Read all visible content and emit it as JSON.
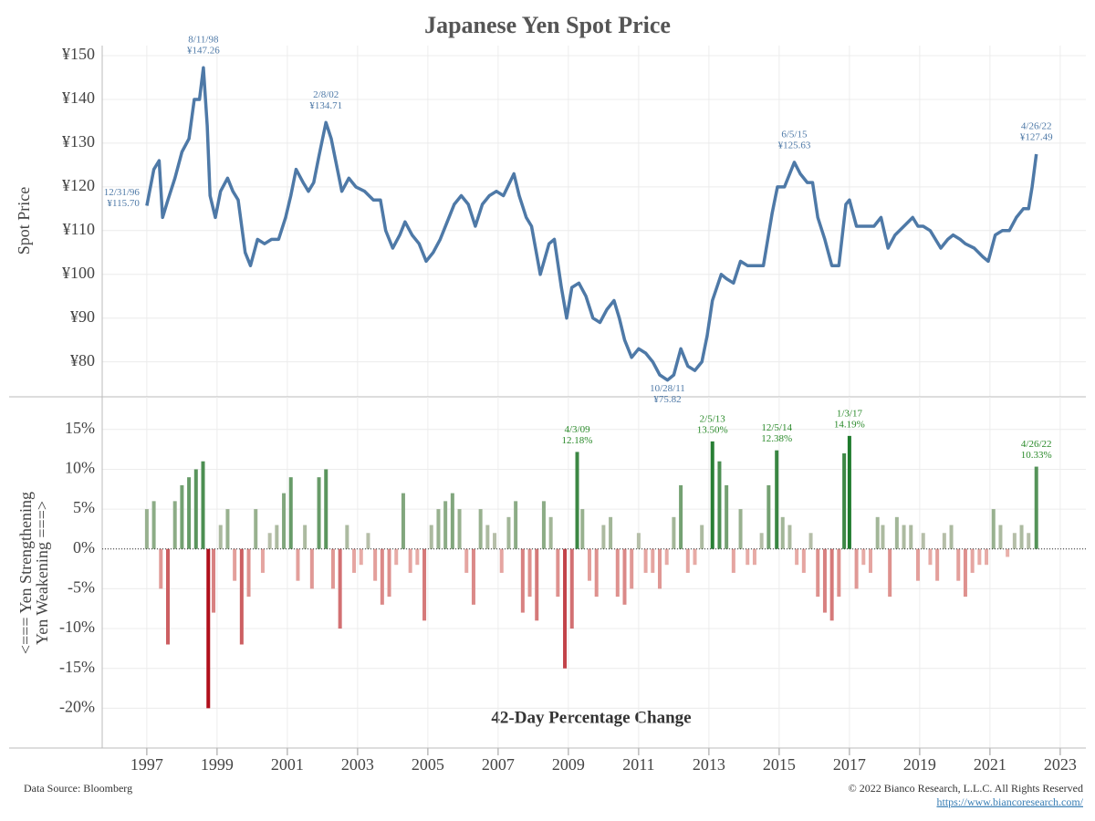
{
  "chart_data": [
    {
      "type": "line",
      "title": "Japanese Yen Spot Price",
      "y_label": "Spot Price",
      "color": "#4e79a7",
      "grid": true,
      "xlim": [
        1995.73,
        2023.73
      ],
      "xticks": [
        1997,
        1999,
        2001,
        2003,
        2005,
        2007,
        2009,
        2011,
        2013,
        2015,
        2017,
        2019,
        2021,
        2023
      ],
      "ylim": [
        72,
        152.3
      ],
      "yticks": [
        {
          "value": 150,
          "label": "¥150"
        },
        {
          "value": 140,
          "label": "¥140"
        },
        {
          "value": 130,
          "label": "¥130"
        },
        {
          "value": 120,
          "label": "¥120"
        },
        {
          "value": 110,
          "label": "¥110"
        },
        {
          "value": 100,
          "label": "¥100"
        },
        {
          "value": 90,
          "label": "¥90"
        },
        {
          "value": 80,
          "label": "¥80"
        }
      ],
      "x": [
        1997.0,
        1997.2,
        1997.35,
        1997.45,
        1997.6,
        1997.8,
        1998.0,
        1998.2,
        1998.35,
        1998.5,
        1998.61,
        1998.72,
        1998.8,
        1998.95,
        1999.1,
        1999.3,
        1999.45,
        1999.6,
        1999.8,
        1999.95,
        2000.15,
        2000.35,
        2000.55,
        2000.75,
        2000.95,
        2001.1,
        2001.25,
        2001.45,
        2001.6,
        2001.75,
        2001.9,
        2002.1,
        2002.25,
        2002.4,
        2002.55,
        2002.75,
        2002.95,
        2003.2,
        2003.45,
        2003.65,
        2003.8,
        2004.0,
        2004.2,
        2004.35,
        2004.55,
        2004.75,
        2004.95,
        2005.15,
        2005.35,
        2005.55,
        2005.75,
        2005.95,
        2006.15,
        2006.35,
        2006.55,
        2006.75,
        2006.95,
        2007.15,
        2007.45,
        2007.6,
        2007.8,
        2007.95,
        2008.2,
        2008.45,
        2008.6,
        2008.8,
        2008.95,
        2009.1,
        2009.3,
        2009.5,
        2009.7,
        2009.9,
        2010.1,
        2010.3,
        2010.45,
        2010.6,
        2010.8,
        2011.0,
        2011.2,
        2011.4,
        2011.6,
        2011.82,
        2012.0,
        2012.2,
        2012.4,
        2012.6,
        2012.8,
        2012.95,
        2013.1,
        2013.35,
        2013.5,
        2013.7,
        2013.9,
        2014.1,
        2014.3,
        2014.55,
        2014.8,
        2014.95,
        2015.15,
        2015.43,
        2015.6,
        2015.8,
        2015.95,
        2016.1,
        2016.3,
        2016.5,
        2016.7,
        2016.9,
        2017.0,
        2017.2,
        2017.45,
        2017.7,
        2017.9,
        2018.1,
        2018.3,
        2018.55,
        2018.8,
        2018.95,
        2019.1,
        2019.3,
        2019.6,
        2019.8,
        2019.95,
        2020.15,
        2020.3,
        2020.55,
        2020.8,
        2020.95,
        2021.15,
        2021.35,
        2021.55,
        2021.75,
        2021.95,
        2022.1,
        2022.2,
        2022.32
      ],
      "values": [
        115.7,
        124,
        126,
        113,
        117,
        122,
        128,
        131,
        140,
        140,
        147.26,
        134,
        118,
        113,
        119,
        122,
        119,
        117,
        105,
        102,
        108,
        107,
        108,
        108,
        113,
        118,
        124,
        121,
        119,
        121,
        127,
        134.71,
        131,
        125,
        119,
        122,
        120,
        119,
        117,
        117,
        110,
        106,
        109,
        112,
        109,
        107,
        103,
        105,
        108,
        112,
        116,
        118,
        116,
        111,
        116,
        118,
        119,
        118,
        123,
        118,
        113,
        111,
        100,
        107,
        108,
        97,
        90,
        97,
        98,
        95,
        90,
        89,
        92,
        94,
        90,
        85,
        81,
        83,
        82,
        80,
        77,
        75.82,
        77,
        83,
        79,
        78,
        80,
        86,
        94,
        100,
        99,
        98,
        103,
        102,
        102,
        102,
        114,
        120,
        120,
        125.63,
        123,
        121,
        121,
        113,
        108,
        102,
        102,
        116,
        117,
        111,
        111,
        111,
        113,
        106,
        109,
        111,
        113,
        111,
        111,
        110,
        106,
        108,
        109,
        108,
        107,
        106,
        104,
        103,
        109,
        110,
        110,
        113,
        115,
        115,
        120,
        127.49
      ],
      "annotations": [
        {
          "date": "12/31/96",
          "label": "¥115.70",
          "x": 1997.0,
          "y": 115.7
        },
        {
          "date": "8/11/98",
          "label": "¥147.26",
          "x": 1998.61,
          "y": 147.26
        },
        {
          "date": "2/8/02",
          "label": "¥134.71",
          "x": 2002.1,
          "y": 134.71
        },
        {
          "date": "10/28/11",
          "label": "¥75.82",
          "x": 2011.82,
          "y": 75.82
        },
        {
          "date": "6/5/15",
          "label": "¥125.63",
          "x": 2015.43,
          "y": 125.63
        },
        {
          "date": "4/26/22",
          "label": "¥127.49",
          "x": 2022.32,
          "y": 127.49
        }
      ]
    },
    {
      "type": "bar",
      "title": "42-Day Percentage Change",
      "y_label": [
        "<=== Yen Strengthening",
        "Yen Weakening ===>"
      ],
      "grid": true,
      "positive_colors": [
        "#c2c4b2",
        "#1e7a2c"
      ],
      "negative_colors": [
        "#eab3ad",
        "#b00f1b"
      ],
      "annotation_color": "#2a8a2a",
      "xlim": [
        1995.73,
        2023.73
      ],
      "xticks": [
        1997,
        1999,
        2001,
        2003,
        2005,
        2007,
        2009,
        2011,
        2013,
        2015,
        2017,
        2019,
        2021,
        2023
      ],
      "ylim": [
        -25,
        19.1
      ],
      "yticks": [
        {
          "value": 15,
          "label": "15%"
        },
        {
          "value": 10,
          "label": "10%"
        },
        {
          "value": 5,
          "label": "5%"
        },
        {
          "value": 0,
          "label": "0%"
        },
        {
          "value": -5,
          "label": "-5%"
        },
        {
          "value": -10,
          "label": "-10%"
        },
        {
          "value": -15,
          "label": "-15%"
        },
        {
          "value": -20,
          "label": "-20%"
        }
      ],
      "x": [
        1997.0,
        1997.2,
        1997.4,
        1997.6,
        1997.8,
        1998.0,
        1998.2,
        1998.4,
        1998.6,
        1998.75,
        1998.9,
        1999.1,
        1999.3,
        1999.5,
        1999.7,
        1999.9,
        2000.1,
        2000.3,
        2000.5,
        2000.7,
        2000.9,
        2001.1,
        2001.3,
        2001.5,
        2001.7,
        2001.9,
        2002.1,
        2002.3,
        2002.5,
        2002.7,
        2002.9,
        2003.1,
        2003.3,
        2003.5,
        2003.7,
        2003.9,
        2004.1,
        2004.3,
        2004.5,
        2004.7,
        2004.9,
        2005.1,
        2005.3,
        2005.5,
        2005.7,
        2005.9,
        2006.1,
        2006.3,
        2006.5,
        2006.7,
        2006.9,
        2007.1,
        2007.3,
        2007.5,
        2007.7,
        2007.9,
        2008.1,
        2008.3,
        2008.5,
        2008.7,
        2008.9,
        2009.1,
        2009.25,
        2009.4,
        2009.6,
        2009.8,
        2010.0,
        2010.2,
        2010.4,
        2010.6,
        2010.8,
        2011.0,
        2011.2,
        2011.4,
        2011.6,
        2011.8,
        2012.0,
        2012.2,
        2012.4,
        2012.6,
        2012.8,
        2013.1,
        2013.3,
        2013.5,
        2013.7,
        2013.9,
        2014.1,
        2014.3,
        2014.5,
        2014.7,
        2014.93,
        2015.1,
        2015.3,
        2015.5,
        2015.7,
        2015.9,
        2016.1,
        2016.3,
        2016.5,
        2016.7,
        2016.85,
        2017.0,
        2017.2,
        2017.4,
        2017.6,
        2017.8,
        2017.95,
        2018.15,
        2018.35,
        2018.55,
        2018.75,
        2018.95,
        2019.1,
        2019.3,
        2019.5,
        2019.7,
        2019.9,
        2020.1,
        2020.3,
        2020.5,
        2020.7,
        2020.9,
        2021.1,
        2021.3,
        2021.5,
        2021.7,
        2021.9,
        2022.1,
        2022.32
      ],
      "values": [
        5,
        6,
        -5,
        -12,
        6,
        8,
        9,
        10,
        11,
        -20,
        -8,
        3,
        5,
        -4,
        -12,
        -6,
        5,
        -3,
        2,
        3,
        7,
        9,
        -4,
        3,
        -5,
        9,
        10,
        -5,
        -10,
        3,
        -3,
        -2,
        2,
        -4,
        -7,
        -6,
        -2,
        7,
        -3,
        -2,
        -9,
        3,
        5,
        6,
        7,
        5,
        -3,
        -7,
        5,
        3,
        2,
        -3,
        4,
        6,
        -8,
        -6,
        -9,
        6,
        4,
        -6,
        -15,
        -10,
        12.18,
        5,
        -4,
        -6,
        3,
        4,
        -6,
        -7,
        -5,
        2,
        -3,
        -3,
        -5,
        -2,
        4,
        8,
        -3,
        -2,
        3,
        13.5,
        11,
        8,
        -3,
        5,
        -2,
        -2,
        2,
        8,
        12.38,
        4,
        3,
        -2,
        -3,
        2,
        -6,
        -8,
        -9,
        -6,
        12,
        14.19,
        -5,
        -2,
        -3,
        4,
        3,
        -6,
        4,
        3,
        3,
        -4,
        2,
        -2,
        -4,
        2,
        3,
        -4,
        -6,
        -3,
        -2,
        -2,
        5,
        3,
        -1,
        2,
        3,
        2,
        10.33
      ],
      "annotations": [
        {
          "date": "4/3/09",
          "label": "12.18%",
          "x": 2009.25,
          "y": 12.18
        },
        {
          "date": "2/5/13",
          "label": "13.50%",
          "x": 2013.1,
          "y": 13.5
        },
        {
          "date": "12/5/14",
          "label": "12.38%",
          "x": 2014.93,
          "y": 12.38
        },
        {
          "date": "1/3/17",
          "label": "14.19%",
          "x": 2017.0,
          "y": 14.19
        },
        {
          "date": "4/26/22",
          "label": "10.33%",
          "x": 2022.32,
          "y": 10.33
        }
      ]
    }
  ],
  "footer": {
    "source": "Data Source: Bloomberg",
    "copyright": "© 2022 Bianco Research, L.L.C. All Rights Reserved",
    "url": "https://www.biancoresearch.com/"
  }
}
